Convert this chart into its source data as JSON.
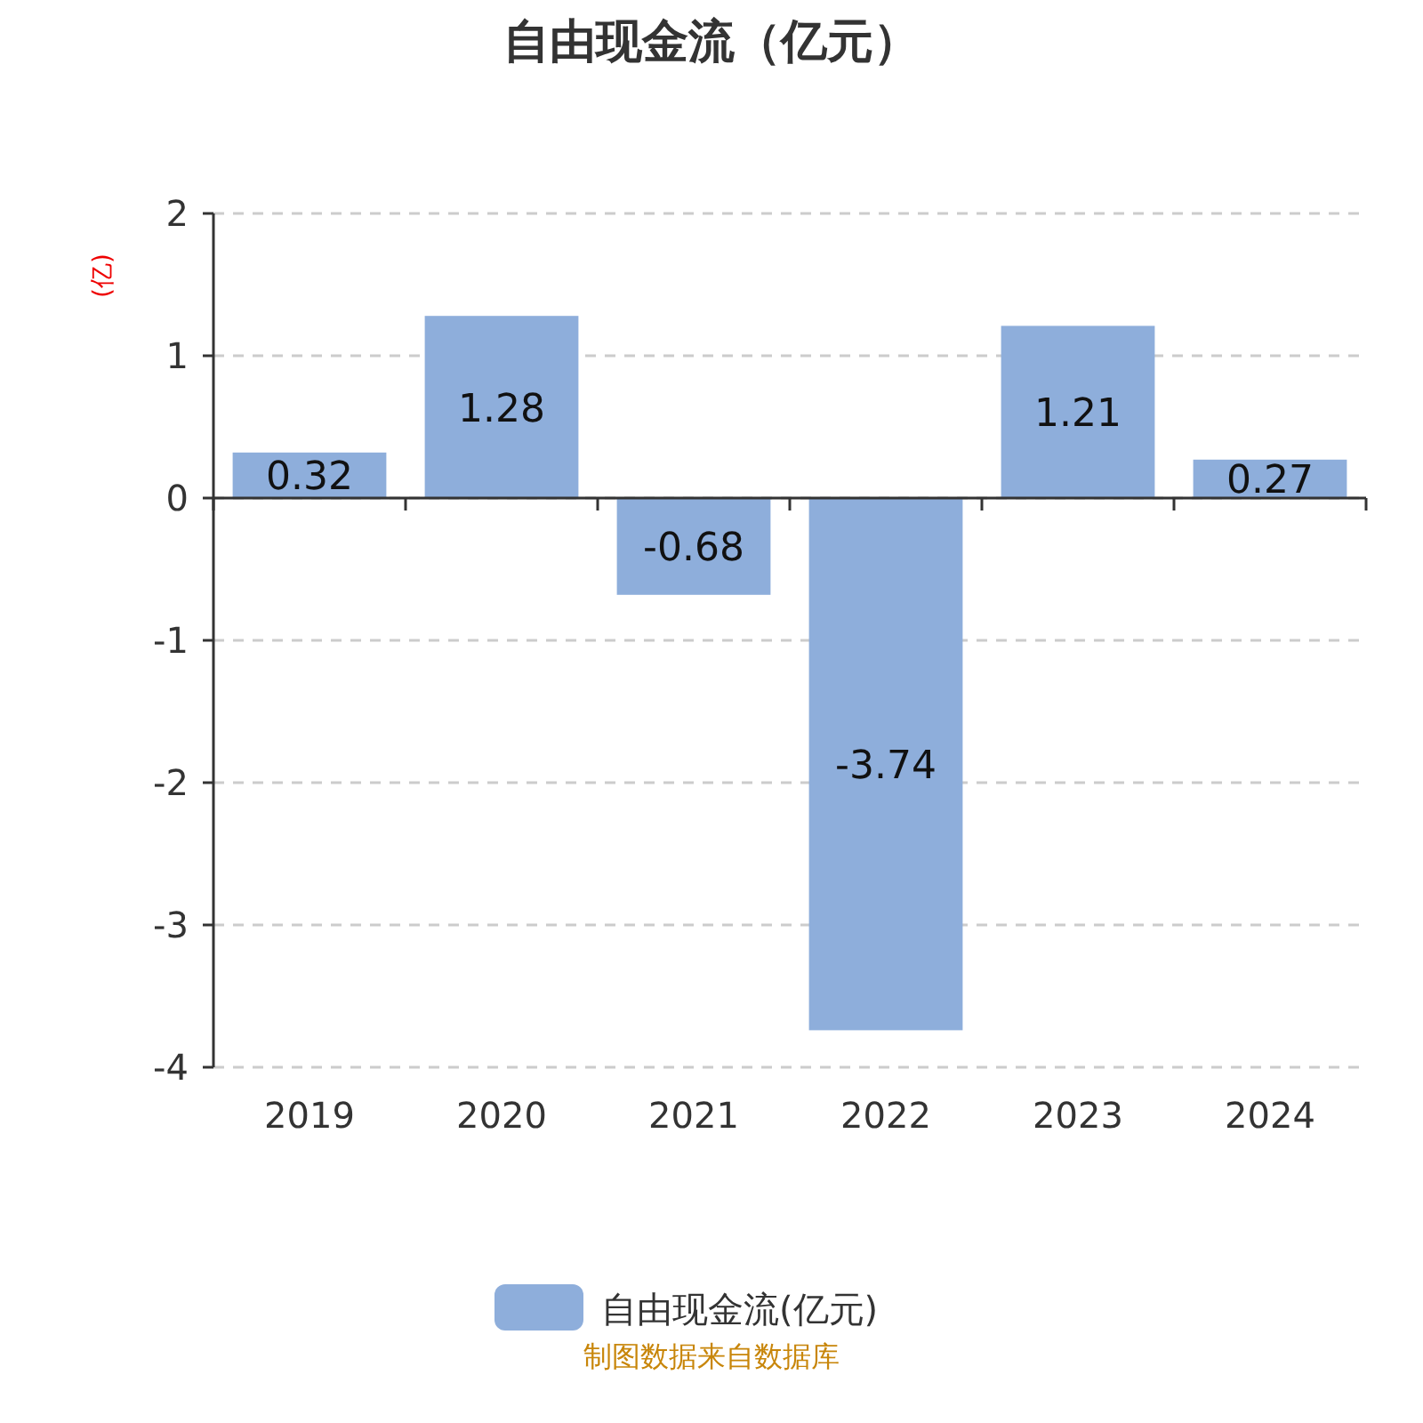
{
  "chart_data": {
    "type": "bar",
    "title": "自由现金流（亿元）",
    "ylabel": "(亿)",
    "categories": [
      "2019",
      "2020",
      "2021",
      "2022",
      "2023",
      "2024"
    ],
    "series": [
      {
        "name": "自由现金流(亿元)",
        "color": "#8eaedb",
        "values": [
          0.32,
          1.28,
          -0.68,
          -3.74,
          1.21,
          0.27
        ]
      }
    ],
    "ylim": [
      -4,
      2
    ],
    "yticks": [
      -4,
      -3,
      -2,
      -1,
      0,
      1,
      2
    ],
    "grid": "y",
    "legend": "bottom",
    "data_labels": true,
    "annotations": [
      "制图数据来自数据库"
    ]
  }
}
